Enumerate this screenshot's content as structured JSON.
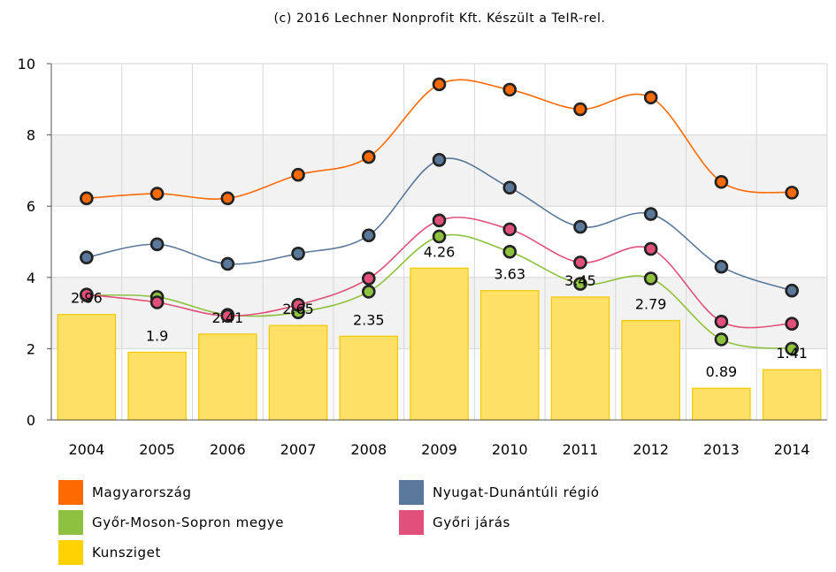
{
  "chart_data": {
    "type": "line",
    "title": "(c) 2016 Lechner Nonprofit Kft. Készült a TeIR-rel.",
    "xlabel": "",
    "ylabel": "",
    "categories": [
      "2004",
      "2005",
      "2006",
      "2007",
      "2008",
      "2009",
      "2010",
      "2011",
      "2012",
      "2013",
      "2014"
    ],
    "ylim": [
      0,
      10
    ],
    "yticks": [
      "0",
      "2",
      "4",
      "6",
      "8",
      "10"
    ],
    "grid": true,
    "legend_position": "bottom",
    "series": [
      {
        "name": "Magyarország",
        "kind": "line",
        "color": "#FF6A00",
        "values": [
          6.22,
          6.35,
          6.22,
          6.88,
          7.38,
          9.42,
          9.27,
          8.72,
          9.05,
          6.68,
          6.38
        ]
      },
      {
        "name": "Nyugat-Dunántúli régió",
        "kind": "line",
        "color": "#5A7899",
        "values": [
          4.56,
          4.93,
          4.38,
          4.67,
          5.18,
          7.3,
          6.52,
          5.42,
          5.78,
          4.3,
          3.63
        ]
      },
      {
        "name": "Győr-Moson-Sopron megye",
        "kind": "line",
        "color": "#8DC13F",
        "values": [
          3.5,
          3.45,
          2.95,
          3.02,
          3.6,
          5.15,
          4.72,
          3.82,
          3.97,
          2.26,
          2.0
        ]
      },
      {
        "name": "Győri járás",
        "kind": "line",
        "color": "#E0507A",
        "values": [
          3.52,
          3.3,
          2.92,
          3.23,
          3.97,
          5.6,
          5.35,
          4.42,
          4.8,
          2.76,
          2.7
        ]
      },
      {
        "name": "Kunsziget",
        "kind": "bar",
        "color": "#FFE066",
        "values": [
          2.96,
          1.9,
          2.41,
          2.65,
          2.35,
          4.26,
          3.63,
          3.45,
          2.79,
          0.89,
          1.41
        ],
        "labels": [
          "2.96",
          "1.9",
          "2.41",
          "2.65",
          "2.35",
          "4.26",
          "3.63",
          "3.45",
          "2.79",
          "0.89",
          "1.41"
        ]
      }
    ]
  },
  "legend": {
    "items": [
      {
        "label": "Magyarország",
        "color": "#FF6A00"
      },
      {
        "label": "Nyugat-Dunántúli régió",
        "color": "#5A7899"
      },
      {
        "label": "Győr-Moson-Sopron megye",
        "color": "#8DC13F"
      },
      {
        "label": "Győri járás",
        "color": "#E0507A"
      },
      {
        "label": "Kunsziget",
        "color": "#FFD200"
      }
    ]
  }
}
